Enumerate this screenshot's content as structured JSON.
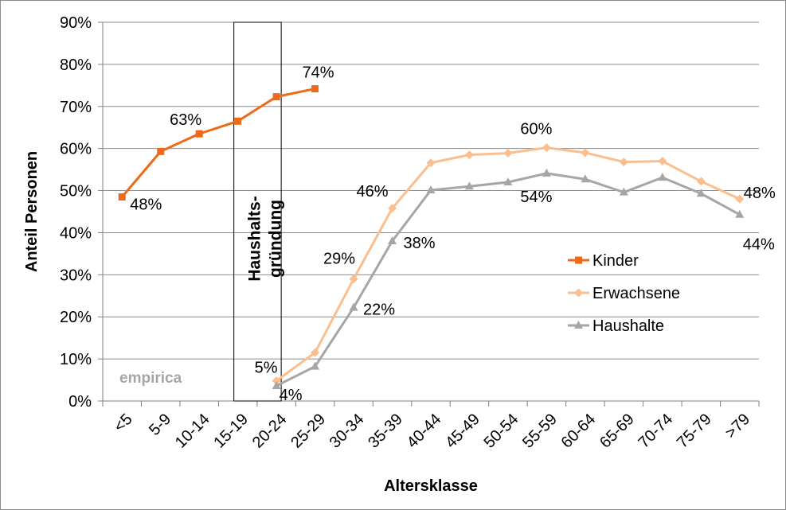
{
  "chart_data": {
    "type": "line",
    "xlabel": "Altersklasse",
    "ylabel": "Anteil Personen",
    "ylim": [
      0,
      90
    ],
    "ytick_suffix": "%",
    "yticks": [
      0,
      10,
      20,
      30,
      40,
      50,
      60,
      70,
      80,
      90
    ],
    "grid": true,
    "legend_position": "right",
    "categories": [
      "<5",
      "5-9",
      "10-14",
      "15-19",
      "20-24",
      "25-29",
      "30-34",
      "35-39",
      "40-44",
      "45-49",
      "50-54",
      "55-59",
      "60-64",
      "65-69",
      "70-74",
      "75-79",
      ">79"
    ],
    "series": [
      {
        "name": "Kinder",
        "color": "#ee6a1a",
        "marker": "square",
        "values": [
          48.5,
          59.3,
          63.5,
          66.5,
          72.3,
          74.2,
          null,
          null,
          null,
          null,
          null,
          null,
          null,
          null,
          null,
          null,
          null
        ]
      },
      {
        "name": "Erwachsene",
        "color": "#fbbf8f",
        "marker": "diamond",
        "values": [
          null,
          null,
          null,
          null,
          4.8,
          11.5,
          29.0,
          45.8,
          56.6,
          58.5,
          58.9,
          60.2,
          59.0,
          56.8,
          57.0,
          52.2,
          48.0
        ]
      },
      {
        "name": "Haushalte",
        "color": "#a6a6a6",
        "marker": "triangle",
        "values": [
          null,
          null,
          null,
          null,
          3.6,
          8.2,
          22.2,
          38.0,
          50.1,
          51.0,
          52.0,
          54.1,
          52.7,
          49.6,
          53.1,
          49.3,
          44.3
        ]
      }
    ],
    "data_labels": [
      {
        "series": "Kinder",
        "index": 0,
        "text": "48%"
      },
      {
        "series": "Kinder",
        "index": 2,
        "text": "63%"
      },
      {
        "series": "Kinder",
        "index": 5,
        "text": "74%"
      },
      {
        "series": "Erwachsene",
        "index": 4,
        "text": "5%"
      },
      {
        "series": "Erwachsene",
        "index": 6,
        "text": "29%"
      },
      {
        "series": "Erwachsene",
        "index": 7,
        "text": "46%"
      },
      {
        "series": "Erwachsene",
        "index": 11,
        "text": "60%"
      },
      {
        "series": "Erwachsene",
        "index": 16,
        "text": "48%"
      },
      {
        "series": "Haushalte",
        "index": 4,
        "text": "4%"
      },
      {
        "series": "Haushalte",
        "index": 6,
        "text": "22%"
      },
      {
        "series": "Haushalte",
        "index": 7,
        "text": "38%"
      },
      {
        "series": "Haushalte",
        "index": 11,
        "text": "54%"
      },
      {
        "series": "Haushalte",
        "index": 16,
        "text": "44%"
      }
    ],
    "annotation": {
      "text_line1": "Haushalts-",
      "text_line2": "gründung",
      "from_category": "15-19",
      "to_category": "20-24"
    },
    "watermark": "empirica"
  }
}
